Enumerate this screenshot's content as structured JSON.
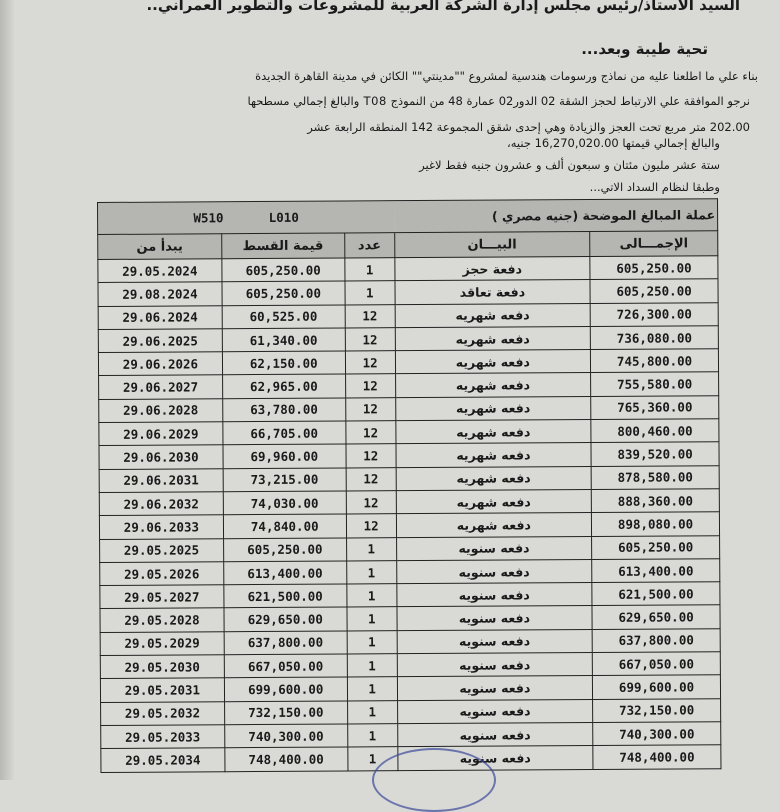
{
  "letter": {
    "addressee": "السيد الأستاذ/رئيس مجلس إدارة الشركة العربية للمشروعات والتطوير العمراني..",
    "greeting": "تحية طيبة وبعد...",
    "para_line1": "بناء علي ما اطلعنا عليه من نماذج ورسومات هندسية لمشروع \"\"مدينتي\"\" الكائن في مدينة القاهرة الجديدة",
    "para_line2": "نرجو الموافقة علي الارتباط لحجز الشقة 02 الدور02 عمارة 48 من النموذج T08 والبالغ إجمالي مسطحها",
    "para_line3": "202.00 متر مربع تحت العجز والزيادة وهي إحدى شقق المجموعة 142 المنطقه الرابعة عشر",
    "total_line": "والبالغ إجمالي قيمتها 16,270,020.00 جنيه،",
    "total_words": "ستة عشر مليون مئتان و سبعون ألف و عشرون جنيه فقط لاغير",
    "payment_intro": "وطبقا لنظام السداد الاتي..."
  },
  "table": {
    "currency_caption": "عملة المبالغ الموضحة (جنيه مصري )",
    "code1": "L010",
    "code2": "W510",
    "headers": {
      "start": "يبدأ من",
      "installment": "قيمة القسط",
      "count": "عدد",
      "description": "البيـــان",
      "total": "الإجمـــالى"
    },
    "rows": [
      {
        "start": "29.05.2024",
        "installment": "605,250.00",
        "count": "1",
        "description": "دفعة حجز",
        "total": "605,250.00"
      },
      {
        "start": "29.08.2024",
        "installment": "605,250.00",
        "count": "1",
        "description": "دفعة تعاقد",
        "total": "605,250.00"
      },
      {
        "start": "29.06.2024",
        "installment": "60,525.00",
        "count": "12",
        "description": "دفعه شهريه",
        "total": "726,300.00"
      },
      {
        "start": "29.06.2025",
        "installment": "61,340.00",
        "count": "12",
        "description": "دفعه شهريه",
        "total": "736,080.00"
      },
      {
        "start": "29.06.2026",
        "installment": "62,150.00",
        "count": "12",
        "description": "دفعه شهريه",
        "total": "745,800.00"
      },
      {
        "start": "29.06.2027",
        "installment": "62,965.00",
        "count": "12",
        "description": "دفعه شهريه",
        "total": "755,580.00"
      },
      {
        "start": "29.06.2028",
        "installment": "63,780.00",
        "count": "12",
        "description": "دفعه شهريه",
        "total": "765,360.00"
      },
      {
        "start": "29.06.2029",
        "installment": "66,705.00",
        "count": "12",
        "description": "دفعه شهريه",
        "total": "800,460.00"
      },
      {
        "start": "29.06.2030",
        "installment": "69,960.00",
        "count": "12",
        "description": "دفعه شهريه",
        "total": "839,520.00"
      },
      {
        "start": "29.06.2031",
        "installment": "73,215.00",
        "count": "12",
        "description": "دفعه شهريه",
        "total": "878,580.00"
      },
      {
        "start": "29.06.2032",
        "installment": "74,030.00",
        "count": "12",
        "description": "دفعه شهريه",
        "total": "888,360.00"
      },
      {
        "start": "29.06.2033",
        "installment": "74,840.00",
        "count": "12",
        "description": "دفعه شهريه",
        "total": "898,080.00"
      },
      {
        "start": "29.05.2025",
        "installment": "605,250.00",
        "count": "1",
        "description": "دفعه سنويه",
        "total": "605,250.00"
      },
      {
        "start": "29.05.2026",
        "installment": "613,400.00",
        "count": "1",
        "description": "دفعه سنويه",
        "total": "613,400.00"
      },
      {
        "start": "29.05.2027",
        "installment": "621,500.00",
        "count": "1",
        "description": "دفعه سنويه",
        "total": "621,500.00"
      },
      {
        "start": "29.05.2028",
        "installment": "629,650.00",
        "count": "1",
        "description": "دفعه سنويه",
        "total": "629,650.00"
      },
      {
        "start": "29.05.2029",
        "installment": "637,800.00",
        "count": "1",
        "description": "دفعه سنويه",
        "total": "637,800.00"
      },
      {
        "start": "29.05.2030",
        "installment": "667,050.00",
        "count": "1",
        "description": "دفعه سنويه",
        "total": "667,050.00"
      },
      {
        "start": "29.05.2031",
        "installment": "699,600.00",
        "count": "1",
        "description": "دفعه سنويه",
        "total": "699,600.00"
      },
      {
        "start": "29.05.2032",
        "installment": "732,150.00",
        "count": "1",
        "description": "دفعه سنويه",
        "total": "732,150.00"
      },
      {
        "start": "29.05.2033",
        "installment": "740,300.00",
        "count": "1",
        "description": "دفعه سنويه",
        "total": "740,300.00"
      },
      {
        "start": "29.05.2034",
        "installment": "748,400.00",
        "count": "1",
        "description": "دفعه سنويه",
        "total": "748,400.00"
      }
    ]
  }
}
